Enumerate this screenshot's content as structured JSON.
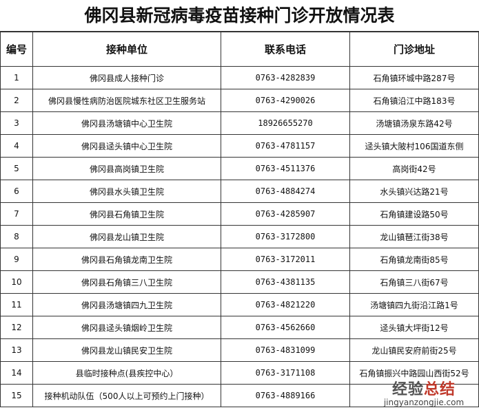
{
  "title": "佛冈县新冠病毒疫苗接种门诊开放情况表",
  "headers": [
    "编号",
    "接种单位",
    "联系电话",
    "门诊地址"
  ],
  "rows": [
    [
      "1",
      "佛冈县成人接种门诊",
      "0763-4282839",
      "石角镇环城中路287号"
    ],
    [
      "2",
      "佛冈县慢性病防治医院城东社区卫生服务站",
      "0763-4290026",
      "石角镇沿江中路183号"
    ],
    [
      "3",
      "佛冈县汤塘镇中心卫生院",
      "18926655270",
      "汤塘镇汤泉东路42号"
    ],
    [
      "4",
      "佛冈县迳头镇中心卫生院",
      "0763-4781157",
      "迳头镇大陂村106国道东侧"
    ],
    [
      "5",
      "佛冈县高岗镇卫生院",
      "0763-4511376",
      "高岗街42号"
    ],
    [
      "6",
      "佛冈县水头镇卫生院",
      "0763-4884274",
      "水头镇兴达路21号"
    ],
    [
      "7",
      "佛冈县石角镇卫生院",
      "0763-4285907",
      "石角镇建设路50号"
    ],
    [
      "8",
      "佛冈县龙山镇卫生院",
      "0763-3172800",
      "龙山镇琶江街38号"
    ],
    [
      "9",
      "佛冈县石角镇龙南卫生院",
      "0763-3172011",
      "石角镇龙南街85号"
    ],
    [
      "10",
      "佛冈县石角镇三八卫生院",
      "0763-4381135",
      "石角镇三八街67号"
    ],
    [
      "11",
      "佛冈县汤塘镇四九卫生院",
      "0763-4821220",
      "汤塘镇四九街沿江路1号"
    ],
    [
      "12",
      "佛冈县迳头镇烟岭卫生院",
      "0763-4562660",
      "迳头镇大坪街12号"
    ],
    [
      "13",
      "佛冈县龙山镇民安卫生院",
      "0763-4831099",
      "龙山镇民安府前街25号"
    ],
    [
      "14",
      "县临时接种点(县疾控中心）",
      "0763-3171108",
      "石角镇振兴中路园山西街52号"
    ],
    [
      "15",
      "接种机动队伍（500人以上可预约上门接种）",
      "0763-4889166",
      ""
    ]
  ],
  "watermark": {
    "cn_a": "经验",
    "cn_b": "总结",
    "en": "jingyanzongjie.com"
  }
}
